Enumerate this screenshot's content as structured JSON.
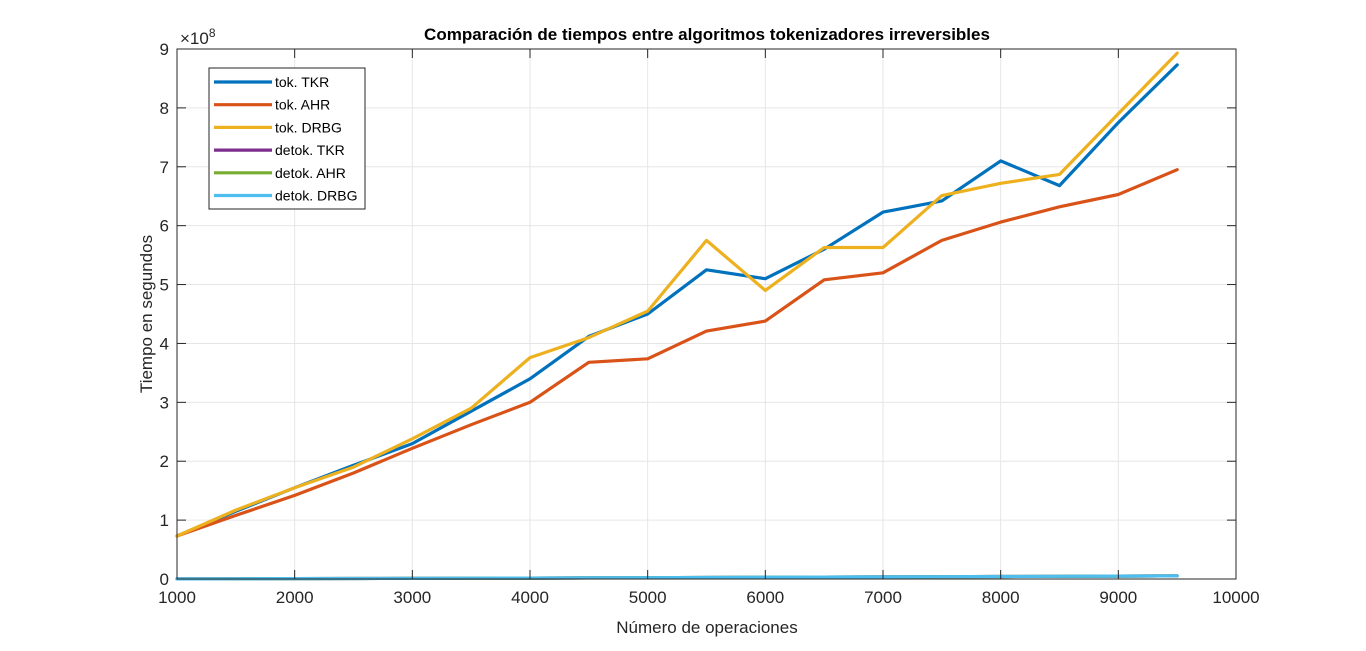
{
  "chart_data": {
    "type": "line",
    "title": "Comparación de tiempos entre algoritmos tokenizadores irreversibles",
    "xlabel": "Número de operaciones",
    "ylabel": "Tiempo en segundos",
    "y_exponent_label": "×10",
    "y_exponent_power": "8",
    "y_scale_factor": 100000000,
    "xlim": [
      1000,
      10000
    ],
    "ylim": [
      0,
      900000000
    ],
    "x_ticks": [
      1000,
      2000,
      3000,
      4000,
      5000,
      6000,
      7000,
      8000,
      9000,
      10000
    ],
    "x_tick_labels": [
      "1000",
      "2000",
      "3000",
      "4000",
      "5000",
      "6000",
      "7000",
      "8000",
      "9000",
      "10000"
    ],
    "y_ticks": [
      0,
      100000000,
      200000000,
      300000000,
      400000000,
      500000000,
      600000000,
      700000000,
      800000000,
      900000000
    ],
    "y_tick_labels": [
      "0",
      "1",
      "2",
      "3",
      "4",
      "5",
      "6",
      "7",
      "8",
      "9"
    ],
    "grid": true,
    "legend_position": "top-left",
    "x": [
      1000,
      1500,
      2000,
      2500,
      3000,
      3500,
      4000,
      4500,
      5000,
      5500,
      6000,
      6500,
      7000,
      7500,
      8000,
      8500,
      9000,
      9500
    ],
    "series": [
      {
        "name": "tok. TKR",
        "color": "#0072BD",
        "values": [
          73000000,
          115000000,
          155000000,
          193000000,
          230000000,
          285000000,
          340000000,
          412000000,
          450000000,
          525000000,
          510000000,
          560000000,
          623000000,
          642000000,
          710000000,
          668000000,
          775000000,
          873000000
        ]
      },
      {
        "name": "tok. AHR",
        "color": "#D95319",
        "values": [
          73000000,
          108000000,
          142000000,
          180000000,
          222000000,
          262000000,
          300000000,
          368000000,
          374000000,
          421000000,
          438000000,
          508000000,
          520000000,
          575000000,
          606000000,
          632000000,
          653000000,
          695000000
        ]
      },
      {
        "name": "tok. DRBG",
        "color": "#EDB120",
        "values": [
          73000000,
          117000000,
          155000000,
          190000000,
          238000000,
          290000000,
          376000000,
          410000000,
          455000000,
          575000000,
          490000000,
          563000000,
          563000000,
          651000000,
          672000000,
          687000000,
          790000000,
          893000000
        ]
      },
      {
        "name": "detok. TKR",
        "color": "#7E2F8E",
        "values": [
          200000,
          400000,
          600000,
          800000,
          1000000,
          1300000,
          1600000,
          1900000,
          2200000,
          2600000,
          3000000,
          3300000,
          3600000,
          3900000,
          4200000,
          4600000,
          5000000,
          5400000
        ]
      },
      {
        "name": "detok. AHR",
        "color": "#77AC30",
        "values": [
          200000,
          400000,
          600000,
          800000,
          1000000,
          1300000,
          1600000,
          1900000,
          2200000,
          2600000,
          3000000,
          3300000,
          3600000,
          3900000,
          4200000,
          4600000,
          5000000,
          5400000
        ]
      },
      {
        "name": "detok. DRBG",
        "color": "#4DBEEE",
        "values": [
          200000,
          400000,
          600000,
          800000,
          1000000,
          1300000,
          1600000,
          1900000,
          2200000,
          2600000,
          3000000,
          3300000,
          3600000,
          3900000,
          4200000,
          4600000,
          5000000,
          5400000
        ]
      }
    ]
  }
}
